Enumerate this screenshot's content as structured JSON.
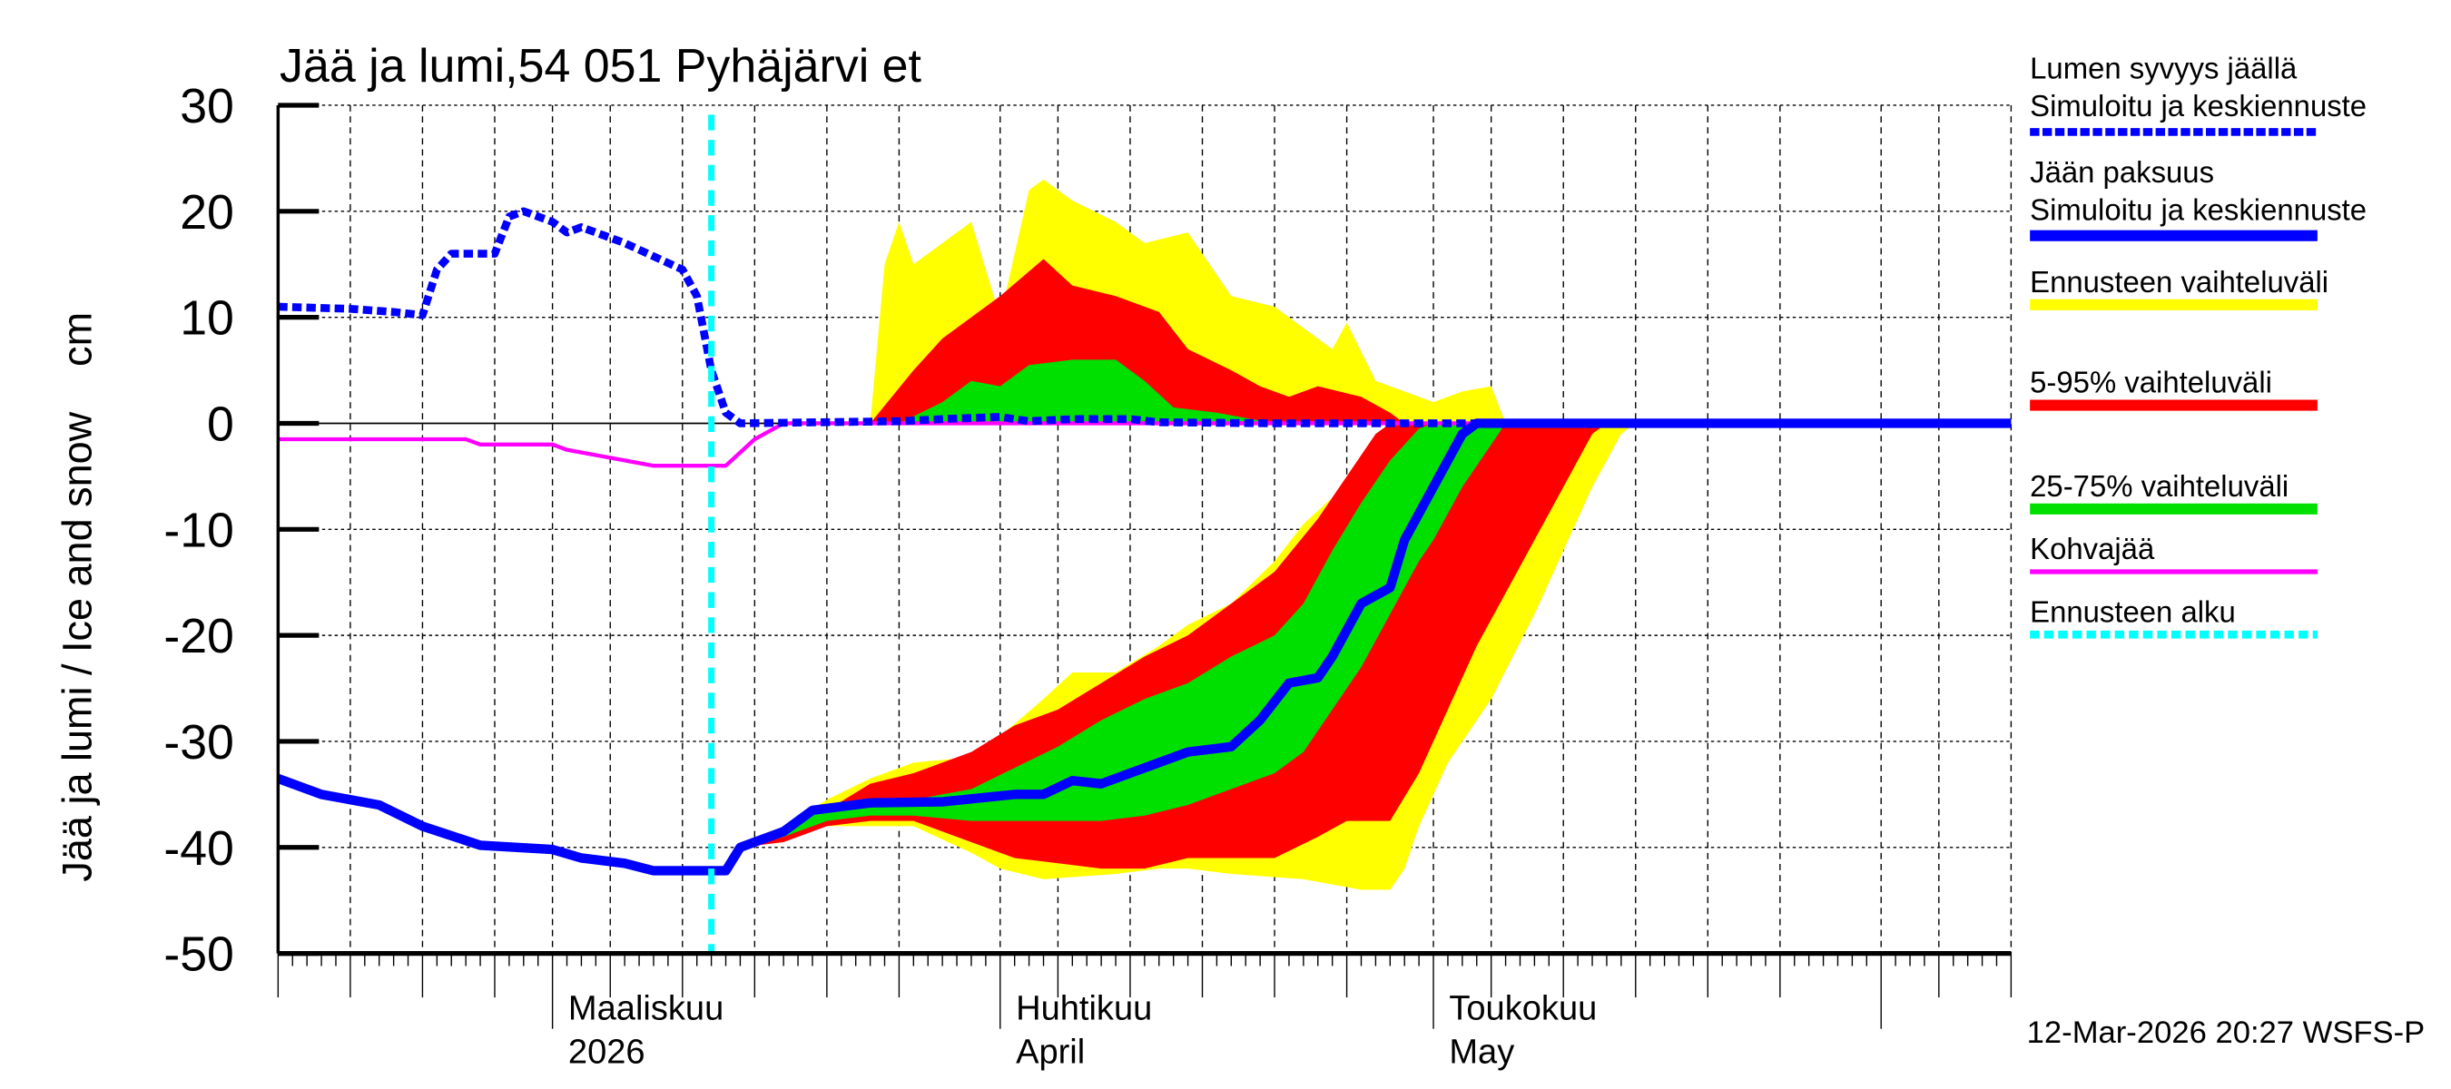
{
  "chart_data": {
    "type": "area",
    "title": "Jää ja lumi,54 051 Pyhäjärvi et",
    "ylabel": "Jää ja lumi / Ice and snow    cm",
    "ylim": [
      -50,
      30
    ],
    "yticks": [
      -50,
      -40,
      -30,
      -20,
      -10,
      0,
      10,
      20,
      30
    ],
    "xlim": [
      "2026-02-10",
      "2026-06-10"
    ],
    "grid": true,
    "legend_placement": "right",
    "x_month_labels": [
      {
        "date": "2026-03-01",
        "line1": "Maaliskuu",
        "line2": "2026"
      },
      {
        "date": "2026-04-01",
        "line1": "Huhtikuu",
        "line2": "April"
      },
      {
        "date": "2026-05-01",
        "line1": "Toukokuu",
        "line2": "May"
      }
    ],
    "forecast_start": "2026-03-12",
    "footer": "12-Mar-2026 20:27 WSFS-P",
    "colors": {
      "snow": "#0000ff",
      "ice": "#0000ff",
      "range_full": "#ffff00",
      "range_5_95": "#ff0000",
      "range_25_75": "#00e000",
      "slush": "#ff00ff",
      "forecast_start": "#00ffff"
    },
    "legend": [
      {
        "line1": "Lumen syvyys jäällä",
        "line2": "Simuloitu ja keskiennuste",
        "style": "dashed-blue"
      },
      {
        "line1": "Jään paksuus",
        "line2": "Simuloitu ja keskiennuste",
        "style": "solid-blue"
      },
      {
        "line1": "Ennusteen vaihteluväli",
        "line2": "",
        "style": "yellow"
      },
      {
        "line1": "5-95% vaihteluväli",
        "line2": "",
        "style": "red"
      },
      {
        "line1": "25-75% vaihteluväli",
        "line2": "",
        "style": "green"
      },
      {
        "line1": "Kohvajää",
        "line2": "",
        "style": "magenta"
      },
      {
        "line1": "Ennusteen alku",
        "line2": "",
        "style": "dashed-cyan"
      }
    ],
    "snow_depth": [
      [
        "02-10",
        11
      ],
      [
        "02-15",
        10.8
      ],
      [
        "02-18",
        10.5
      ],
      [
        "02-20",
        10.2
      ],
      [
        "02-21",
        14.5
      ],
      [
        "02-22",
        16
      ],
      [
        "02-25",
        16
      ],
      [
        "02-26",
        19.5
      ],
      [
        "02-27",
        20
      ],
      [
        "03-01",
        19
      ],
      [
        "03-02",
        18
      ],
      [
        "03-03",
        18.5
      ],
      [
        "03-06",
        17
      ],
      [
        "03-10",
        14.5
      ],
      [
        "03-11",
        12
      ],
      [
        "03-12",
        5
      ],
      [
        "03-13",
        1
      ],
      [
        "03-14",
        0
      ],
      [
        "03-25",
        0.2
      ],
      [
        "03-28",
        0.4
      ],
      [
        "04-01",
        0.6
      ],
      [
        "04-03",
        0.2
      ],
      [
        "04-06",
        0.4
      ],
      [
        "04-10",
        0.4
      ],
      [
        "04-12",
        0.1
      ],
      [
        "04-20",
        0
      ],
      [
        "06-10",
        0
      ]
    ],
    "ice_thickness": [
      [
        "02-10",
        -33.5
      ],
      [
        "02-13",
        -35
      ],
      [
        "02-17",
        -36
      ],
      [
        "02-20",
        -38
      ],
      [
        "02-24",
        -39.8
      ],
      [
        "03-01",
        -40.2
      ],
      [
        "03-03",
        -41
      ],
      [
        "03-06",
        -41.5
      ],
      [
        "03-08",
        -42.2
      ],
      [
        "03-13",
        -42.2
      ],
      [
        "03-14",
        -40
      ],
      [
        "03-17",
        -38.5
      ],
      [
        "03-19",
        -36.5
      ],
      [
        "03-23",
        -35.8
      ],
      [
        "03-28",
        -35.7
      ],
      [
        "04-02",
        -35
      ],
      [
        "04-04",
        -35
      ],
      [
        "04-06",
        -33.7
      ],
      [
        "04-08",
        -34
      ],
      [
        "04-11",
        -32.5
      ],
      [
        "04-14",
        -31
      ],
      [
        "04-17",
        -30.5
      ],
      [
        "04-19",
        -28
      ],
      [
        "04-21",
        -24.5
      ],
      [
        "04-23",
        -24
      ],
      [
        "04-24",
        -22
      ],
      [
        "04-26",
        -17
      ],
      [
        "04-28",
        -15.5
      ],
      [
        "04-29",
        -11
      ],
      [
        "05-01",
        -6
      ],
      [
        "05-03",
        -1
      ],
      [
        "05-04",
        0
      ],
      [
        "06-10",
        0
      ]
    ],
    "slush_ice": [
      [
        "02-10",
        -1.5
      ],
      [
        "02-23",
        -1.5
      ],
      [
        "02-24",
        -2
      ],
      [
        "03-01",
        -2
      ],
      [
        "03-02",
        -2.5
      ],
      [
        "03-04",
        -3
      ],
      [
        "03-06",
        -3.5
      ],
      [
        "03-08",
        -4
      ],
      [
        "03-13",
        -4
      ],
      [
        "03-15",
        -1.5
      ],
      [
        "03-17",
        0
      ],
      [
        "06-10",
        0
      ]
    ],
    "snow_range_full": [
      [
        "03-23",
        0
      ],
      [
        "03-24",
        15
      ],
      [
        "03-25",
        19
      ],
      [
        "03-26",
        15
      ],
      [
        "03-30",
        19
      ],
      [
        "04-01",
        10
      ],
      [
        "04-03",
        22
      ],
      [
        "04-04",
        23
      ],
      [
        "04-06",
        21
      ],
      [
        "04-09",
        19
      ],
      [
        "04-11",
        17
      ],
      [
        "04-14",
        18
      ],
      [
        "04-17",
        12
      ],
      [
        "04-20",
        11
      ],
      [
        "04-22",
        9
      ],
      [
        "04-24",
        7
      ],
      [
        "04-25",
        9.5
      ],
      [
        "04-27",
        4
      ],
      [
        "04-29",
        3
      ],
      [
        "05-01",
        2
      ],
      [
        "05-03",
        3
      ],
      [
        "05-05",
        3.5
      ],
      [
        "05-06",
        0
      ]
    ],
    "snow_range_5_95": [
      [
        "03-23",
        0
      ],
      [
        "03-26",
        5
      ],
      [
        "03-28",
        8
      ],
      [
        "03-30",
        10
      ],
      [
        "04-01",
        12
      ],
      [
        "04-04",
        15.5
      ],
      [
        "04-06",
        13
      ],
      [
        "04-09",
        12
      ],
      [
        "04-12",
        10.5
      ],
      [
        "04-14",
        7
      ],
      [
        "04-17",
        5
      ],
      [
        "04-19",
        3.5
      ],
      [
        "04-21",
        2.5
      ],
      [
        "04-23",
        3.5
      ],
      [
        "04-26",
        2.5
      ],
      [
        "04-28",
        1
      ],
      [
        "04-29",
        0
      ]
    ],
    "snow_range_25_75": [
      [
        "03-25",
        0
      ],
      [
        "03-28",
        2
      ],
      [
        "03-30",
        4
      ],
      [
        "04-01",
        3.5
      ],
      [
        "04-03",
        5.5
      ],
      [
        "04-06",
        6
      ],
      [
        "04-09",
        6
      ],
      [
        "04-11",
        4
      ],
      [
        "04-13",
        1.5
      ],
      [
        "04-16",
        1
      ],
      [
        "04-20",
        0
      ]
    ],
    "ice_range_full": [
      [
        "03-14",
        -40,
        -40
      ],
      [
        "03-17",
        -38,
        -39
      ],
      [
        "03-20",
        -35.5,
        -38
      ],
      [
        "03-23",
        -33.5,
        -38
      ],
      [
        "03-26",
        -32,
        -38
      ],
      [
        "03-30",
        -31.5,
        -40.5
      ],
      [
        "04-01",
        -29.5,
        -42
      ],
      [
        "04-04",
        -26,
        -43
      ],
      [
        "04-06",
        -23.5,
        -42.8
      ],
      [
        "04-09",
        -23.5,
        -42.5
      ],
      [
        "04-12",
        -21,
        -42
      ],
      [
        "04-14",
        -19,
        -42
      ],
      [
        "04-17",
        -17,
        -42.5
      ],
      [
        "04-20",
        -13,
        -42.8
      ],
      [
        "04-22",
        -9.5,
        -43
      ],
      [
        "04-24",
        -7,
        -43.5
      ],
      [
        "04-26",
        -3,
        -44
      ],
      [
        "04-28",
        -0.5,
        -44
      ],
      [
        "04-29",
        0,
        -42
      ],
      [
        "04-30",
        0,
        -38
      ],
      [
        "05-02",
        0,
        -32
      ],
      [
        "05-05",
        0,
        -26
      ],
      [
        "05-08",
        0,
        -18
      ],
      [
        "05-10",
        0,
        -12
      ],
      [
        "05-12",
        0,
        -6
      ],
      [
        "05-14",
        0,
        -1
      ],
      [
        "05-15",
        0,
        0
      ]
    ],
    "ice_range_5_95": [
      [
        "03-14",
        -40,
        -40
      ],
      [
        "03-17",
        -38.5,
        -39.5
      ],
      [
        "03-20",
        -36.5,
        -38
      ],
      [
        "03-23",
        -34,
        -37.5
      ],
      [
        "03-26",
        -33,
        -37.5
      ],
      [
        "03-30",
        -31,
        -39.5
      ],
      [
        "04-02",
        -28.5,
        -41
      ],
      [
        "04-05",
        -27,
        -41.5
      ],
      [
        "04-08",
        -24.5,
        -42
      ],
      [
        "04-11",
        -22,
        -42
      ],
      [
        "04-14",
        -20,
        -41
      ],
      [
        "04-17",
        -17,
        -41
      ],
      [
        "04-20",
        -14,
        -41
      ],
      [
        "04-23",
        -9,
        -39
      ],
      [
        "04-25",
        -5,
        -37.5
      ],
      [
        "04-27",
        -1,
        -37.5
      ],
      [
        "04-28",
        0,
        -37.5
      ],
      [
        "04-30",
        0,
        -33
      ],
      [
        "05-02",
        0,
        -27
      ],
      [
        "05-04",
        0,
        -21
      ],
      [
        "05-06",
        0,
        -16
      ],
      [
        "05-08",
        0,
        -11
      ],
      [
        "05-10",
        0,
        -6
      ],
      [
        "05-12",
        0,
        -1
      ],
      [
        "05-13",
        0,
        0
      ]
    ],
    "ice_range_25_75": [
      [
        "03-15",
        -39.5,
        -39.8
      ],
      [
        "03-17",
        -38,
        -39
      ],
      [
        "03-20",
        -36.5,
        -37.5
      ],
      [
        "03-23",
        -36,
        -37
      ],
      [
        "03-26",
        -35.5,
        -37
      ],
      [
        "03-30",
        -34.5,
        -37.5
      ],
      [
        "04-02",
        -32.5,
        -37.5
      ],
      [
        "04-05",
        -30.5,
        -37.5
      ],
      [
        "04-08",
        -28,
        -37.5
      ],
      [
        "04-11",
        -26,
        -37
      ],
      [
        "04-14",
        -24.5,
        -36
      ],
      [
        "04-17",
        -22,
        -34.5
      ],
      [
        "04-20",
        -20,
        -33
      ],
      [
        "04-22",
        -17,
        -31
      ],
      [
        "04-24",
        -12,
        -27
      ],
      [
        "04-26",
        -7.5,
        -23
      ],
      [
        "04-28",
        -3.5,
        -18
      ],
      [
        "04-30",
        -0.5,
        -13
      ],
      [
        "05-01",
        0,
        -11
      ],
      [
        "05-03",
        0,
        -6
      ],
      [
        "05-05",
        0,
        -2
      ],
      [
        "05-06",
        0,
        0
      ]
    ]
  }
}
